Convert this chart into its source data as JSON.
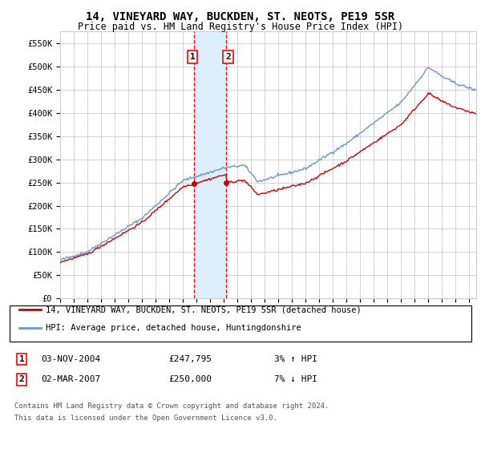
{
  "title": "14, VINEYARD WAY, BUCKDEN, ST. NEOTS, PE19 5SR",
  "subtitle": "Price paid vs. HM Land Registry's House Price Index (HPI)",
  "ylabel_ticks": [
    "£0",
    "£50K",
    "£100K",
    "£150K",
    "£200K",
    "£250K",
    "£300K",
    "£350K",
    "£400K",
    "£450K",
    "£500K",
    "£550K"
  ],
  "ytick_values": [
    0,
    50000,
    100000,
    150000,
    200000,
    250000,
    300000,
    350000,
    400000,
    450000,
    500000,
    550000
  ],
  "ylim": [
    0,
    575000
  ],
  "xlim_start": 1995.0,
  "xlim_end": 2025.5,
  "sale1_date": 2004.84,
  "sale1_price": 247795,
  "sale1_label": "03-NOV-2004",
  "sale1_amount": "£247,795",
  "sale1_hpi": "3% ↑ HPI",
  "sale2_date": 2007.17,
  "sale2_price": 250000,
  "sale2_label": "02-MAR-2007",
  "sale2_amount": "£250,000",
  "sale2_hpi": "7% ↓ HPI",
  "legend_line1": "14, VINEYARD WAY, BUCKDEN, ST. NEOTS, PE19 5SR (detached house)",
  "legend_line2": "HPI: Average price, detached house, Huntingdonshire",
  "footnote1": "Contains HM Land Registry data © Crown copyright and database right 2024.",
  "footnote2": "This data is licensed under the Open Government Licence v3.0.",
  "line_color_red": "#cc0000",
  "line_color_blue": "#6699cc",
  "shade_color": "#ddeeff",
  "background_color": "#ffffff",
  "grid_color": "#cccccc",
  "title_fontsize": 10,
  "subtitle_fontsize": 8.5,
  "tick_fontsize": 7.5,
  "legend_fontsize": 7.5,
  "annotation_fontsize": 8,
  "footnote_fontsize": 6.5
}
